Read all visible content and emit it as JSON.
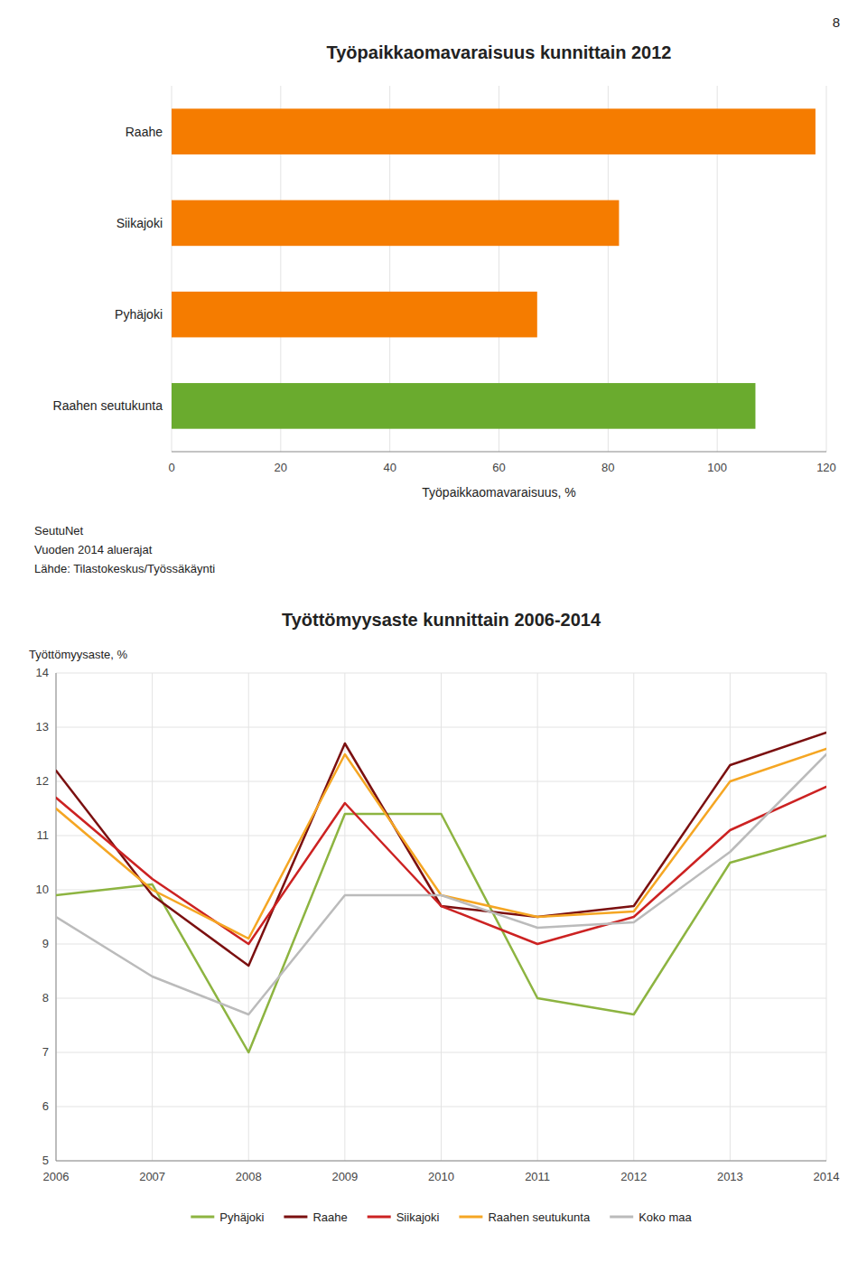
{
  "page_number": "8",
  "chart_data": [
    {
      "type": "bar",
      "orientation": "horizontal",
      "title": "Työpaikkaomavaraisuus kunnittain 2012",
      "categories": [
        "Raahe",
        "Siikajoki",
        "Pyhäjoki",
        "Raahen seutukunta"
      ],
      "values": [
        118,
        82,
        67,
        107
      ],
      "colors": [
        "#F57C00",
        "#F57C00",
        "#F57C00",
        "#6AAB2E"
      ],
      "xlabel": "Työpaikkaomavaraisuus, %",
      "xlim": [
        0,
        120
      ],
      "xticks": [
        0,
        20,
        40,
        60,
        80,
        100,
        120
      ],
      "grid": true,
      "annotations": [
        "SeutuNet",
        "Vuoden 2014 aluerajat",
        "Lähde: Tilastokeskus/Työssäkäynti"
      ]
    },
    {
      "type": "line",
      "title": "Työttömyysaste kunnittain 2006-2014",
      "ylabel": "Työttömyysaste, %",
      "x": [
        2006,
        2007,
        2008,
        2009,
        2010,
        2011,
        2012,
        2013,
        2014
      ],
      "xlim": [
        2006,
        2014
      ],
      "xticks": [
        2006,
        2007,
        2008,
        2009,
        2010,
        2011,
        2012,
        2013,
        2014
      ],
      "ylim": [
        5,
        14
      ],
      "yticks": [
        5,
        6,
        7,
        8,
        9,
        10,
        11,
        12,
        13,
        14
      ],
      "grid": true,
      "legend": "bottom",
      "series": [
        {
          "name": "Pyhäjoki",
          "color": "#8DB441",
          "values": [
            9.9,
            10.1,
            7.0,
            11.4,
            11.4,
            8.0,
            7.7,
            10.5,
            11.0
          ]
        },
        {
          "name": "Raahe",
          "color": "#7B1010",
          "values": [
            12.2,
            9.9,
            8.6,
            12.7,
            9.7,
            9.5,
            9.7,
            12.3,
            12.9
          ]
        },
        {
          "name": "Siikajoki",
          "color": "#CC2222",
          "values": [
            11.7,
            10.2,
            9.0,
            11.6,
            9.7,
            9.0,
            9.5,
            11.1,
            11.9
          ]
        },
        {
          "name": "Raahen seutukunta",
          "color": "#F5A623",
          "values": [
            11.5,
            10.0,
            9.1,
            12.5,
            9.9,
            9.5,
            9.6,
            12.0,
            12.6
          ]
        },
        {
          "name": "Koko maa",
          "color": "#BBBBBB",
          "values": [
            9.5,
            8.4,
            7.7,
            9.9,
            9.9,
            9.3,
            9.4,
            10.7,
            12.5
          ]
        }
      ]
    }
  ]
}
